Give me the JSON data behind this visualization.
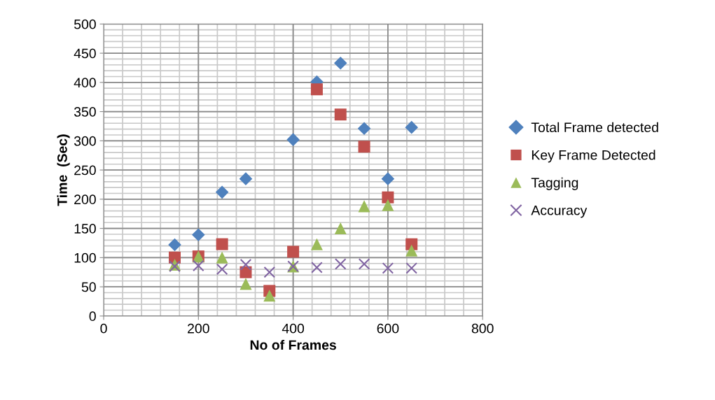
{
  "chart_data": {
    "type": "scatter",
    "xlabel": "No of Frames",
    "ylabel": "Time  (Sec)",
    "xlim": [
      0,
      800
    ],
    "xticks": [
      0,
      200,
      400,
      600,
      800
    ],
    "ylim": [
      0,
      500
    ],
    "yticks": [
      0,
      50,
      100,
      150,
      200,
      250,
      300,
      350,
      400,
      450,
      500
    ],
    "grid": true,
    "legend": "right",
    "series": [
      {
        "name": "Total Frame detected",
        "color": "#4f81bd",
        "marker": "diamond",
        "x": [
          150,
          200,
          250,
          300,
          350,
          400,
          450,
          500,
          550,
          600,
          650
        ],
        "values": [
          122,
          139,
          212,
          235,
          null,
          302,
          401,
          433,
          321,
          235,
          323
        ]
      },
      {
        "name": "Key Frame Detected",
        "color": "#c0504d",
        "marker": "square",
        "x": [
          150,
          200,
          250,
          300,
          350,
          400,
          450,
          500,
          550,
          600,
          650
        ],
        "values": [
          100,
          102,
          123,
          75,
          43,
          110,
          388,
          345,
          290,
          203,
          123
        ]
      },
      {
        "name": "Tagging",
        "color": "#9bbb59",
        "marker": "triangle",
        "x": [
          150,
          200,
          250,
          300,
          350,
          400,
          450,
          500,
          550,
          600,
          650
        ],
        "values": [
          88,
          102,
          100,
          55,
          35,
          85,
          123,
          150,
          188,
          190,
          112
        ]
      },
      {
        "name": "Accuracy",
        "color": "#8064a2",
        "marker": "cross",
        "x": [
          150,
          200,
          250,
          300,
          350,
          400,
          450,
          500,
          550,
          600,
          650
        ],
        "values": [
          85,
          86,
          80,
          88,
          75,
          85,
          83,
          89,
          89,
          82,
          82
        ]
      }
    ]
  }
}
